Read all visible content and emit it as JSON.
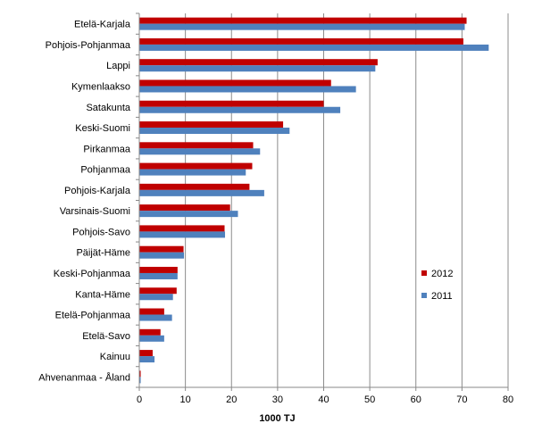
{
  "chart_data": {
    "type": "bar",
    "orientation": "horizontal",
    "categories": [
      "Etelä-Karjala",
      "Pohjois-Pohjanmaa",
      "Lappi",
      "Kymenlaakso",
      "Satakunta",
      "Keski-Suomi",
      "Pirkanmaa",
      "Pohjanmaa",
      "Pohjois-Karjala",
      "Varsinais-Suomi",
      "Pohjois-Savo",
      "Päijät-Häme",
      "Keski-Pohjanmaa",
      "Kanta-Häme",
      "Etelä-Pohjanmaa",
      "Etelä-Savo",
      "Kainuu",
      "Ahvenanmaa - Åland"
    ],
    "series": [
      {
        "name": "2012",
        "color": "#c00000",
        "values": [
          71.0,
          70.3,
          51.7,
          41.6,
          40.0,
          31.2,
          24.7,
          24.5,
          23.9,
          19.7,
          18.5,
          9.6,
          8.3,
          8.1,
          5.4,
          4.6,
          2.9,
          0.3
        ]
      },
      {
        "name": "2011",
        "color": "#4f81bd",
        "values": [
          70.6,
          75.8,
          51.2,
          47.0,
          43.6,
          32.6,
          26.2,
          23.1,
          27.1,
          21.4,
          18.6,
          9.7,
          8.3,
          7.3,
          7.1,
          5.4,
          3.3,
          0.3
        ]
      }
    ],
    "xlim": [
      0,
      80
    ],
    "xticks": [
      0,
      10,
      20,
      30,
      40,
      50,
      60,
      70,
      80
    ],
    "xlabel": "1000 TJ",
    "ylabel": "",
    "title": "",
    "legend_position": "right",
    "grid": "vertical-major"
  }
}
